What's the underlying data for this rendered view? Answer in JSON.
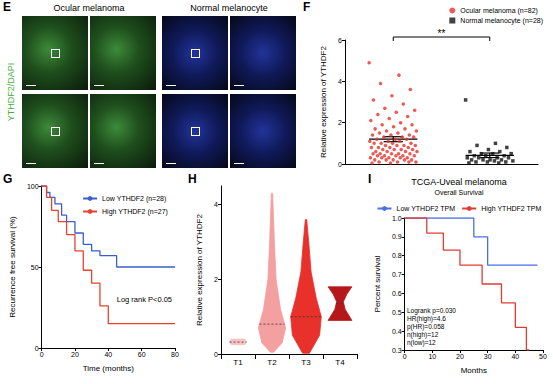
{
  "panel_e": {
    "panel": "E",
    "headers": [
      "Ocular melanoma",
      "Normal melanocyte"
    ],
    "stain_label": "YTHDF2/DAPI"
  },
  "chart_data": [
    {
      "panel": "F",
      "type": "dot_plot",
      "ylabel": "Relative expression of YTHDF2",
      "ylim": [
        0,
        6
      ],
      "yticks": [
        0,
        2,
        4,
        6
      ],
      "tick_labels": "y",
      "grid": false,
      "legend": "top-right",
      "annotation": "**",
      "series": [
        {
          "name": "Ocular melanoma (n=82)",
          "color": "#e8312b",
          "marker": "circle",
          "mean": 1.2,
          "error": 0.12,
          "values": [
            4.9,
            4.3,
            3.9,
            3.6,
            3.3,
            3.1,
            2.9,
            2.7,
            2.6,
            2.5,
            2.4,
            2.3,
            2.2,
            2.1,
            2.0,
            1.9,
            1.9,
            1.8,
            1.7,
            1.7,
            1.6,
            1.6,
            1.5,
            1.5,
            1.4,
            1.4,
            1.4,
            1.3,
            1.3,
            1.3,
            1.2,
            1.2,
            1.2,
            1.1,
            1.1,
            1.1,
            1.0,
            1.0,
            1.0,
            1.0,
            0.9,
            0.9,
            0.9,
            0.9,
            0.8,
            0.8,
            0.8,
            0.8,
            0.7,
            0.7,
            0.7,
            0.7,
            0.6,
            0.6,
            0.6,
            0.6,
            0.5,
            0.5,
            0.5,
            0.5,
            0.5,
            0.4,
            0.4,
            0.4,
            0.4,
            0.4,
            0.3,
            0.3,
            0.3,
            0.3,
            0.3,
            0.2,
            0.2,
            0.2,
            0.2,
            0.2,
            0.1,
            0.1,
            0.1,
            0.1,
            0.05,
            0.05
          ]
        },
        {
          "name": "Normal melanocyte (n=28)",
          "color": "#111111",
          "marker": "square",
          "mean": 0.42,
          "error": 0.11,
          "values": [
            3.1,
            1.0,
            0.9,
            0.8,
            0.7,
            0.6,
            0.6,
            0.5,
            0.5,
            0.5,
            0.4,
            0.4,
            0.4,
            0.3,
            0.3,
            0.3,
            0.3,
            0.2,
            0.2,
            0.2,
            0.2,
            0.15,
            0.15,
            0.1,
            0.1,
            0.1,
            0.05,
            0.05
          ]
        }
      ]
    },
    {
      "panel": "G",
      "type": "survival",
      "xlabel": "Time (months)",
      "ylabel": "Recurrence free survival (%)",
      "xlim": [
        0,
        80
      ],
      "xticks": [
        0,
        20,
        40,
        60,
        80
      ],
      "ylim": [
        0,
        100
      ],
      "yticks": [
        0,
        50,
        100
      ],
      "grid": false,
      "legend": "top-right",
      "annotations": [
        "Log rank P<0.05"
      ],
      "series": [
        {
          "name": "Low YTHDF2 (n=28)",
          "color": "#3a5fcd",
          "x": [
            0,
            3,
            5,
            8,
            12,
            15,
            20,
            25,
            30,
            35,
            45,
            80
          ],
          "values": [
            100,
            96,
            93,
            89,
            82,
            78,
            71,
            64,
            60,
            57,
            50,
            50
          ]
        },
        {
          "name": "High YTHDF2 (n=27)",
          "color": "#e8422f",
          "x": [
            0,
            3,
            6,
            10,
            15,
            20,
            25,
            30,
            35,
            40,
            80
          ],
          "values": [
            100,
            93,
            85,
            78,
            70,
            60,
            48,
            40,
            26,
            15,
            15
          ]
        }
      ]
    },
    {
      "panel": "H",
      "type": "violin",
      "ylabel": "Relative expression of YTHDF2",
      "categories": [
        "T1",
        "T2",
        "T3",
        "T4"
      ],
      "colors": [
        "#f7c2c2",
        "#f4a0a0",
        "#e8312b",
        "#b5181b"
      ],
      "ylim": [
        0,
        4.5
      ],
      "yticks": [
        0,
        2,
        4
      ],
      "grid": false,
      "profiles": [
        [
          [
            0.25,
            0.2
          ],
          [
            0.32,
            0.25
          ],
          [
            0.4,
            0.2
          ]
        ],
        [
          [
            0.05,
            0.05
          ],
          [
            0.3,
            0.3
          ],
          [
            0.7,
            0.4
          ],
          [
            1.2,
            0.25
          ],
          [
            2.0,
            0.12
          ],
          [
            3.0,
            0.07
          ],
          [
            4.3,
            0.02
          ]
        ],
        [
          [
            0.02,
            0.1
          ],
          [
            0.5,
            0.4
          ],
          [
            1.0,
            0.45
          ],
          [
            1.5,
            0.3
          ],
          [
            2.2,
            0.15
          ],
          [
            3.0,
            0.08
          ],
          [
            3.6,
            0.02
          ]
        ],
        [
          [
            0.9,
            0.35
          ],
          [
            1.2,
            0.15
          ],
          [
            1.4,
            0.1
          ],
          [
            1.6,
            0.2
          ],
          [
            1.8,
            0.35
          ]
        ]
      ],
      "medians": [
        0.32,
        0.8,
        1.0,
        1.35
      ]
    },
    {
      "panel": "I",
      "type": "survival",
      "title": "TCGA-Uveal melanoma",
      "subtitle": "Overall Survival",
      "xlabel": "Months",
      "ylabel": "Percent survival",
      "xlim": [
        0,
        50
      ],
      "xticks": [
        0,
        10,
        20,
        30,
        40,
        50
      ],
      "ylim": [
        0.3,
        1.0
      ],
      "yticks": [
        0.3,
        0.4,
        0.5,
        0.6,
        0.7,
        0.8,
        0.9,
        {
          "value": 1,
          "label": "1.0"
        }
      ],
      "grid": false,
      "legend": "top",
      "annotations": [
        "Logrank p=0.030",
        "HR(high)=4.6",
        "p(HR)=0.058",
        "n(high)=12",
        "n(low)=12"
      ],
      "series": [
        {
          "name": "Low YTHDF2 TPM",
          "color": "#4a6fe3",
          "x": [
            0,
            25,
            30,
            48
          ],
          "values": [
            1,
            0.9,
            0.75,
            0.75
          ]
        },
        {
          "name": "High YTHDF2 TPM",
          "color": "#e03c31",
          "x": [
            0,
            8,
            14,
            20,
            28,
            35,
            40,
            44,
            45
          ],
          "values": [
            1,
            0.92,
            0.83,
            0.75,
            0.65,
            0.55,
            0.42,
            0.3,
            0.3
          ]
        }
      ]
    }
  ]
}
